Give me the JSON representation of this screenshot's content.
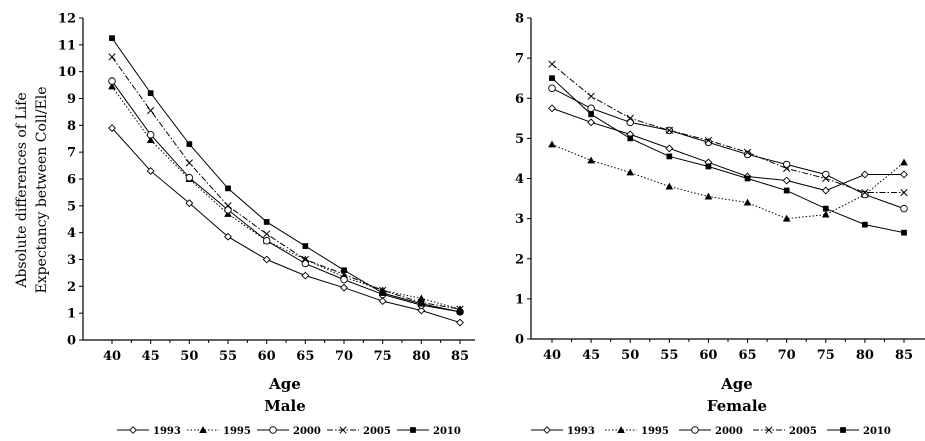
{
  "chart_data": [
    {
      "type": "line",
      "title": "Male",
      "xlabel": "Age",
      "ylabel_lines": [
        "Absolute differences of Life",
        "Expectancy between Coll/Ele"
      ],
      "x": [
        40,
        45,
        50,
        55,
        60,
        65,
        70,
        75,
        80,
        85
      ],
      "ylim": [
        0,
        12
      ],
      "yticks": [
        0,
        1,
        2,
        3,
        4,
        5,
        6,
        7,
        8,
        9,
        10,
        11,
        12
      ],
      "grid": false,
      "legend": "bottom",
      "series": [
        {
          "name": "1993",
          "marker": "diamond-open",
          "dash": "solid",
          "values": [
            7.9,
            6.3,
            5.1,
            3.85,
            3.0,
            2.4,
            1.95,
            1.45,
            1.1,
            0.65
          ]
        },
        {
          "name": "1995",
          "marker": "triangle",
          "dash": "dotted",
          "values": [
            9.45,
            7.45,
            6.0,
            4.7,
            3.7,
            3.0,
            2.35,
            1.85,
            1.55,
            1.15
          ]
        },
        {
          "name": "2000",
          "marker": "circle-open",
          "dash": "solid",
          "values": [
            9.65,
            7.65,
            6.05,
            4.85,
            3.7,
            2.85,
            2.25,
            1.7,
            1.3,
            1.05
          ]
        },
        {
          "name": "2005",
          "marker": "x",
          "dash": "dashdot",
          "values": [
            10.55,
            8.55,
            6.6,
            5.0,
            3.95,
            3.0,
            2.45,
            1.85,
            1.4,
            1.15
          ]
        },
        {
          "name": "2010",
          "marker": "square",
          "dash": "solid",
          "values": [
            11.25,
            9.2,
            7.3,
            5.65,
            4.4,
            3.5,
            2.6,
            1.75,
            1.35,
            1.05
          ]
        }
      ]
    },
    {
      "type": "line",
      "title": "Female",
      "xlabel": "Age",
      "x": [
        40,
        45,
        50,
        55,
        60,
        65,
        70,
        75,
        80,
        85
      ],
      "ylim": [
        0,
        8
      ],
      "yticks": [
        0,
        1,
        2,
        3,
        4,
        5,
        6,
        7,
        8
      ],
      "grid": false,
      "legend": "bottom",
      "series": [
        {
          "name": "1993",
          "marker": "diamond-open",
          "dash": "solid",
          "values": [
            5.75,
            5.4,
            5.1,
            4.75,
            4.4,
            4.05,
            3.95,
            3.7,
            4.1,
            4.1
          ]
        },
        {
          "name": "1995",
          "marker": "triangle",
          "dash": "dotted",
          "values": [
            4.85,
            4.45,
            4.15,
            3.8,
            3.55,
            3.4,
            3.0,
            3.1,
            3.6,
            4.4
          ]
        },
        {
          "name": "2000",
          "marker": "circle-open",
          "dash": "solid",
          "values": [
            6.25,
            5.75,
            5.4,
            5.2,
            4.9,
            4.6,
            4.35,
            4.1,
            3.6,
            3.25
          ]
        },
        {
          "name": "2005",
          "marker": "x",
          "dash": "dashdot",
          "values": [
            6.85,
            6.05,
            5.5,
            5.2,
            4.95,
            4.65,
            4.25,
            4.0,
            3.65,
            3.65
          ]
        },
        {
          "name": "2010",
          "marker": "square",
          "dash": "solid",
          "values": [
            6.5,
            5.6,
            5.0,
            4.55,
            4.3,
            4.0,
            3.7,
            3.25,
            2.85,
            2.65
          ]
        }
      ]
    }
  ]
}
